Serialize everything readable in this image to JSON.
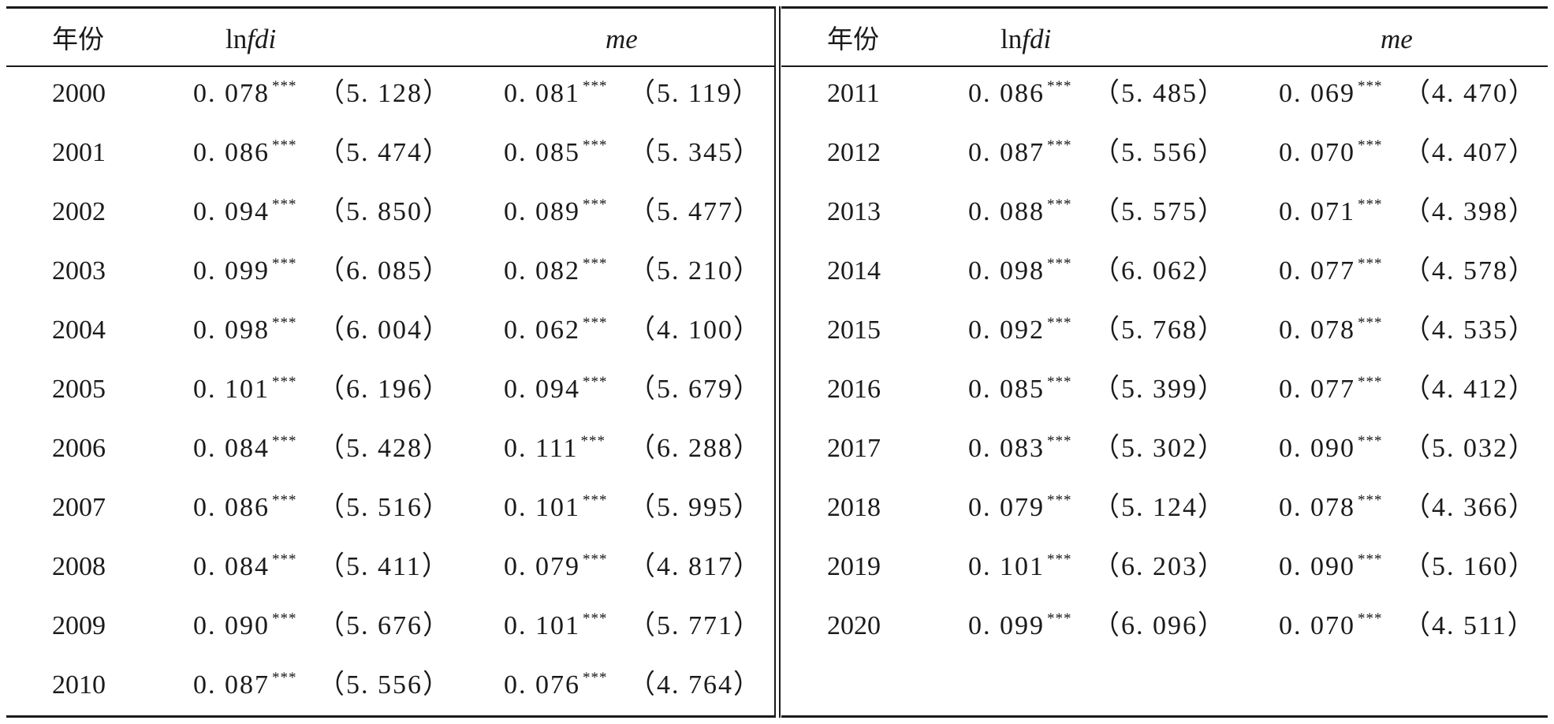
{
  "headers": {
    "year": "年份",
    "col1_prefix": "ln",
    "col1_italic": "fdi",
    "col2_italic": "me"
  },
  "left_rows": [
    {
      "year": "2000",
      "c1": "0. 078",
      "s1": "***",
      "t1": "（5. 128）",
      "c2": "0. 081",
      "s2": "***",
      "t2": "（5. 119）"
    },
    {
      "year": "2001",
      "c1": "0. 086",
      "s1": "***",
      "t1": "（5. 474）",
      "c2": "0. 085",
      "s2": "***",
      "t2": "（5. 345）"
    },
    {
      "year": "2002",
      "c1": "0. 094",
      "s1": "***",
      "t1": "（5. 850）",
      "c2": "0. 089",
      "s2": "***",
      "t2": "（5. 477）"
    },
    {
      "year": "2003",
      "c1": "0. 099",
      "s1": "***",
      "t1": "（6. 085）",
      "c2": "0. 082",
      "s2": "***",
      "t2": "（5. 210）"
    },
    {
      "year": "2004",
      "c1": "0. 098",
      "s1": "***",
      "t1": "（6. 004）",
      "c2": "0. 062",
      "s2": "***",
      "t2": "（4. 100）"
    },
    {
      "year": "2005",
      "c1": "0. 101",
      "s1": "***",
      "t1": "（6. 196）",
      "c2": "0. 094",
      "s2": "***",
      "t2": "（5. 679）"
    },
    {
      "year": "2006",
      "c1": "0. 084",
      "s1": "***",
      "t1": "（5. 428）",
      "c2": "0. 111",
      "s2": "***",
      "t2": "（6. 288）"
    },
    {
      "year": "2007",
      "c1": "0. 086",
      "s1": "***",
      "t1": "（5. 516）",
      "c2": "0. 101",
      "s2": "***",
      "t2": "（5. 995）"
    },
    {
      "year": "2008",
      "c1": "0. 084",
      "s1": "***",
      "t1": "（5. 411）",
      "c2": "0. 079",
      "s2": "***",
      "t2": "（4. 817）"
    },
    {
      "year": "2009",
      "c1": "0. 090",
      "s1": "***",
      "t1": "（5. 676）",
      "c2": "0. 101",
      "s2": "***",
      "t2": "（5. 771）"
    },
    {
      "year": "2010",
      "c1": "0. 087",
      "s1": "***",
      "t1": "（5. 556）",
      "c2": "0. 076",
      "s2": "***",
      "t2": "（4. 764）"
    }
  ],
  "right_rows": [
    {
      "year": "2011",
      "c1": "0. 086",
      "s1": "***",
      "t1": "（5. 485）",
      "c2": "0. 069",
      "s2": "***",
      "t2": "（4. 470）"
    },
    {
      "year": "2012",
      "c1": "0. 087",
      "s1": "***",
      "t1": "（5. 556）",
      "c2": "0. 070",
      "s2": "***",
      "t2": "（4. 407）"
    },
    {
      "year": "2013",
      "c1": "0. 088",
      "s1": "***",
      "t1": "（5. 575）",
      "c2": "0. 071",
      "s2": "***",
      "t2": "（4. 398）"
    },
    {
      "year": "2014",
      "c1": "0. 098",
      "s1": "***",
      "t1": "（6. 062）",
      "c2": "0. 077",
      "s2": "***",
      "t2": "（4. 578）"
    },
    {
      "year": "2015",
      "c1": "0. 092",
      "s1": "***",
      "t1": "（5. 768）",
      "c2": "0. 078",
      "s2": "***",
      "t2": "（4. 535）"
    },
    {
      "year": "2016",
      "c1": "0. 085",
      "s1": "***",
      "t1": "（5. 399）",
      "c2": "0. 077",
      "s2": "***",
      "t2": "（4. 412）"
    },
    {
      "year": "2017",
      "c1": "0. 083",
      "s1": "***",
      "t1": "（5. 302）",
      "c2": "0. 090",
      "s2": "***",
      "t2": "（5. 032）"
    },
    {
      "year": "2018",
      "c1": "0. 079",
      "s1": "***",
      "t1": "（5. 124）",
      "c2": "0. 078",
      "s2": "***",
      "t2": "（4. 366）"
    },
    {
      "year": "2019",
      "c1": "0. 101",
      "s1": "***",
      "t1": "（6. 203）",
      "c2": "0. 090",
      "s2": "***",
      "t2": "（5. 160）"
    },
    {
      "year": "2020",
      "c1": "0. 099",
      "s1": "***",
      "t1": "（6. 096）",
      "c2": "0. 070",
      "s2": "***",
      "t2": "（4. 511）"
    }
  ]
}
